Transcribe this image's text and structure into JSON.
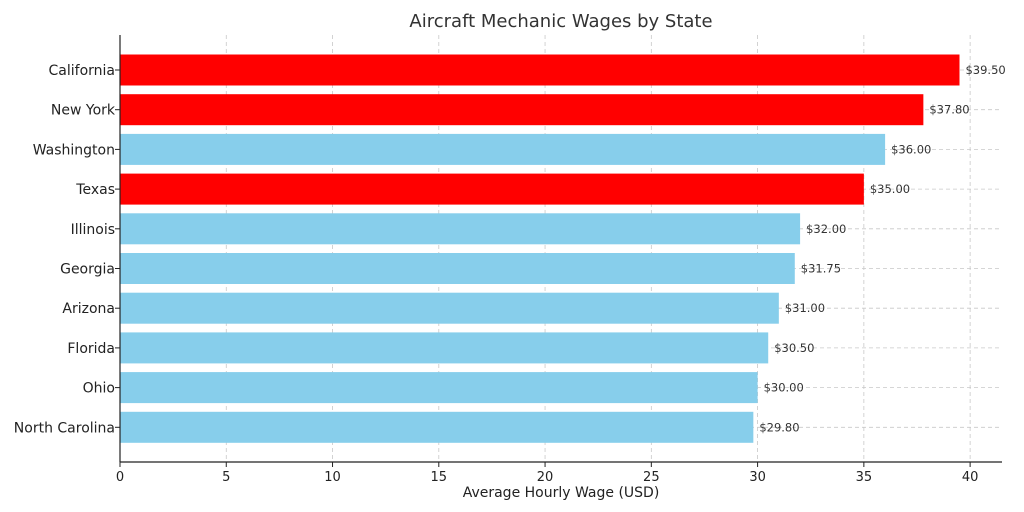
{
  "chart_data": {
    "type": "bar",
    "orientation": "horizontal",
    "title": "Aircraft Mechanic Wages by State",
    "xlabel": "Average Hourly Wage (USD)",
    "ylabel": "",
    "xlim": [
      0,
      41.5
    ],
    "xticks": [
      "0",
      "5",
      "10",
      "15",
      "20",
      "25",
      "30",
      "35",
      "40"
    ],
    "grid": true,
    "categories": [
      "California",
      "New York",
      "Washington",
      "Texas",
      "Illinois",
      "Georgia",
      "Arizona",
      "Florida",
      "Ohio",
      "North Carolina"
    ],
    "values": [
      39.5,
      37.8,
      36.0,
      35.0,
      32.0,
      31.75,
      31.0,
      30.5,
      30.0,
      29.8
    ],
    "data_labels": [
      "$39.50",
      "$37.80",
      "$36.00",
      "$35.00",
      "$32.00",
      "$31.75",
      "$31.00",
      "$30.50",
      "$30.00",
      "$29.80"
    ],
    "highlighted": [
      "California",
      "New York",
      "Texas"
    ],
    "colors": {
      "highlight": "#ff0000",
      "default": "#87ceeb"
    }
  }
}
